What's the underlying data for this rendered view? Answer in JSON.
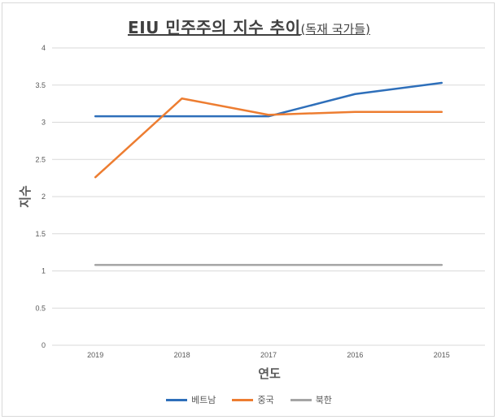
{
  "chart_data": {
    "type": "line",
    "title": "EIU 민주주의 지수 추이",
    "subtitle": "(독재 국가들)",
    "xlabel": "연도",
    "ylabel": "지수",
    "categories": [
      "2019",
      "2018",
      "2017",
      "2016",
      "2015"
    ],
    "ylim": [
      0,
      4
    ],
    "yticks": [
      "0",
      "0.5",
      "1",
      "1.5",
      "2",
      "2.5",
      "3",
      "3.5",
      "4"
    ],
    "grid": true,
    "legend_position": "bottom",
    "series": [
      {
        "name": "베트남",
        "color": "#2e6fba",
        "values": [
          3.08,
          3.08,
          3.08,
          3.38,
          3.53
        ]
      },
      {
        "name": "중국",
        "color": "#ed7d31",
        "values": [
          2.26,
          3.32,
          3.1,
          3.14,
          3.14
        ]
      },
      {
        "name": "북한",
        "color": "#a5a5a5",
        "values": [
          1.08,
          1.08,
          1.08,
          1.08,
          1.08
        ]
      }
    ]
  }
}
